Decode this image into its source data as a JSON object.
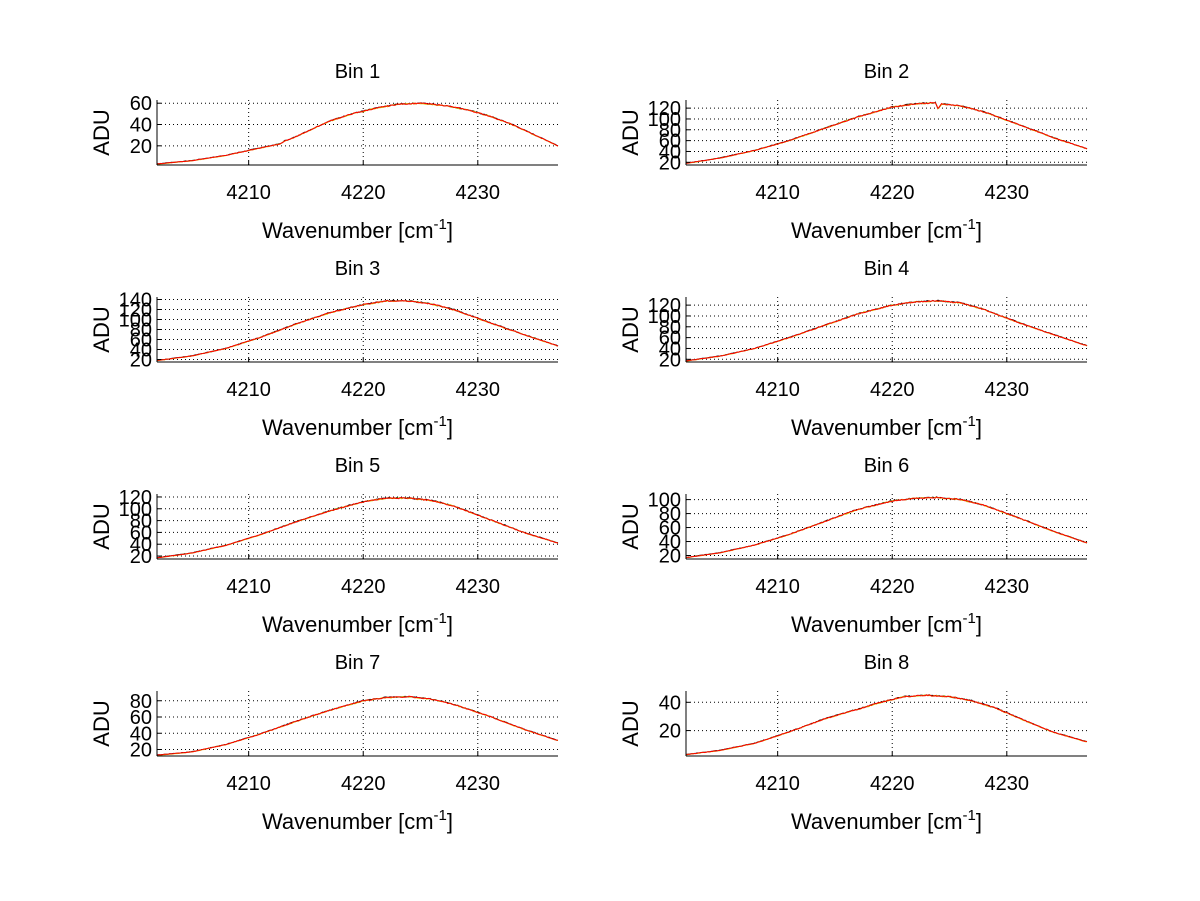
{
  "figure": {
    "xlabel_main": "Wavenumber [cm",
    "xlabel_exp": "-1",
    "xlabel_close": "]",
    "ylabel": "ADU",
    "colors": {
      "axes": "#000000",
      "grid": "#000000",
      "series_a": "#ff0000",
      "series_b": "#cccc00",
      "series_c": "#000000"
    }
  },
  "chart_data": [
    {
      "type": "line",
      "title": "Bin 1",
      "xlabel": "Wavenumber [cm-1]",
      "ylabel": "ADU",
      "xlim": [
        4202,
        4237
      ],
      "ylim": [
        2,
        63
      ],
      "xticks": [
        4210,
        4220,
        4230
      ],
      "yticks": [
        20,
        40,
        60
      ],
      "grid": true,
      "x": [
        4202,
        4205,
        4208,
        4211,
        4212.8,
        4213.2,
        4213.6,
        4215,
        4217,
        4219,
        4221,
        4223,
        4225,
        4227,
        4229,
        4231,
        4233,
        4235,
        4237
      ],
      "values": [
        3,
        6,
        11,
        18,
        22,
        25,
        26,
        33,
        43,
        50,
        55,
        59,
        60,
        58,
        54,
        48,
        40,
        30,
        20
      ]
    },
    {
      "type": "line",
      "title": "Bin 2",
      "xlabel": "Wavenumber [cm-1]",
      "ylabel": "ADU",
      "xlim": [
        4202,
        4237
      ],
      "ylim": [
        15,
        135
      ],
      "xticks": [
        4210,
        4220,
        4230
      ],
      "yticks": [
        20,
        40,
        60,
        80,
        100,
        120
      ],
      "grid": true,
      "x": [
        4202,
        4205,
        4208,
        4211,
        4214,
        4217,
        4220,
        4222,
        4223.8,
        4224,
        4224.3,
        4226,
        4228,
        4231,
        4234,
        4237
      ],
      "values": [
        18,
        28,
        42,
        60,
        82,
        104,
        122,
        128,
        130,
        118,
        128,
        124,
        113,
        90,
        66,
        45
      ]
    },
    {
      "type": "line",
      "title": "Bin 3",
      "xlabel": "Wavenumber [cm-1]",
      "ylabel": "ADU",
      "xlim": [
        4202,
        4237
      ],
      "ylim": [
        15,
        145
      ],
      "xticks": [
        4210,
        4220,
        4230
      ],
      "yticks": [
        20,
        40,
        60,
        80,
        100,
        120,
        140
      ],
      "grid": true,
      "x": [
        4202,
        4205,
        4208,
        4211,
        4214,
        4217,
        4220,
        4222,
        4224,
        4226,
        4228,
        4231,
        4234,
        4237
      ],
      "values": [
        18,
        27,
        42,
        64,
        90,
        113,
        130,
        137,
        137,
        131,
        119,
        94,
        70,
        47
      ]
    },
    {
      "type": "line",
      "title": "Bin 4",
      "xlabel": "Wavenumber [cm-1]",
      "ylabel": "ADU",
      "xlim": [
        4202,
        4237
      ],
      "ylim": [
        15,
        135
      ],
      "xticks": [
        4210,
        4220,
        4230
      ],
      "yticks": [
        20,
        40,
        60,
        80,
        100,
        120
      ],
      "grid": true,
      "x": [
        4202,
        4205,
        4208,
        4211,
        4214,
        4217,
        4220,
        4222,
        4224,
        4226,
        4228,
        4231,
        4234,
        4237
      ],
      "values": [
        17,
        26,
        40,
        60,
        82,
        104,
        120,
        126,
        128,
        124,
        112,
        88,
        66,
        45
      ]
    },
    {
      "type": "line",
      "title": "Bin 5",
      "xlabel": "Wavenumber [cm-1]",
      "ylabel": "ADU",
      "xlim": [
        4202,
        4237
      ],
      "ylim": [
        15,
        125
      ],
      "xticks": [
        4210,
        4220,
        4230
      ],
      "yticks": [
        20,
        40,
        60,
        80,
        100,
        120
      ],
      "grid": true,
      "x": [
        4202,
        4205,
        4208,
        4211,
        4214,
        4217,
        4220,
        4222,
        4224,
        4226,
        4228,
        4231,
        4234,
        4237
      ],
      "values": [
        17,
        25,
        38,
        56,
        77,
        96,
        112,
        118,
        118,
        114,
        104,
        82,
        60,
        42
      ]
    },
    {
      "type": "line",
      "title": "Bin 6",
      "xlabel": "Wavenumber [cm-1]",
      "ylabel": "ADU",
      "xlim": [
        4202,
        4237
      ],
      "ylim": [
        15,
        108
      ],
      "xticks": [
        4210,
        4220,
        4230
      ],
      "yticks": [
        20,
        40,
        60,
        80,
        100
      ],
      "grid": true,
      "x": [
        4202,
        4205,
        4208,
        4211,
        4214,
        4217,
        4220,
        4222,
        4224,
        4226,
        4228,
        4231,
        4234,
        4237
      ],
      "values": [
        17,
        24,
        35,
        50,
        68,
        86,
        98,
        102,
        103,
        100,
        92,
        74,
        55,
        38
      ]
    },
    {
      "type": "line",
      "title": "Bin 7",
      "xlabel": "Wavenumber [cm-1]",
      "ylabel": "ADU",
      "xlim": [
        4202,
        4237
      ],
      "ylim": [
        12,
        92
      ],
      "xticks": [
        4210,
        4220,
        4230
      ],
      "yticks": [
        20,
        40,
        60,
        80
      ],
      "grid": true,
      "x": [
        4202,
        4205,
        4208,
        4211,
        4214,
        4217,
        4220,
        4222,
        4224,
        4226,
        4228,
        4231,
        4234,
        4237
      ],
      "values": [
        13,
        17,
        26,
        39,
        54,
        68,
        80,
        84,
        85,
        82,
        75,
        61,
        45,
        31
      ]
    },
    {
      "type": "line",
      "title": "Bin 8",
      "xlabel": "Wavenumber [cm-1]",
      "ylabel": "ADU",
      "xlim": [
        4202,
        4237
      ],
      "ylim": [
        2,
        48
      ],
      "xticks": [
        4210,
        4220,
        4230
      ],
      "yticks": [
        20,
        40
      ],
      "grid": true,
      "x": [
        4202,
        4205,
        4208,
        4211,
        4214,
        4216.5,
        4217,
        4219,
        4221,
        4223,
        4225,
        4227,
        4229,
        4231,
        4234,
        4237
      ],
      "values": [
        3,
        6,
        11,
        19,
        28,
        34,
        35,
        40,
        44,
        45,
        44,
        41,
        36,
        29,
        19,
        12
      ]
    }
  ]
}
